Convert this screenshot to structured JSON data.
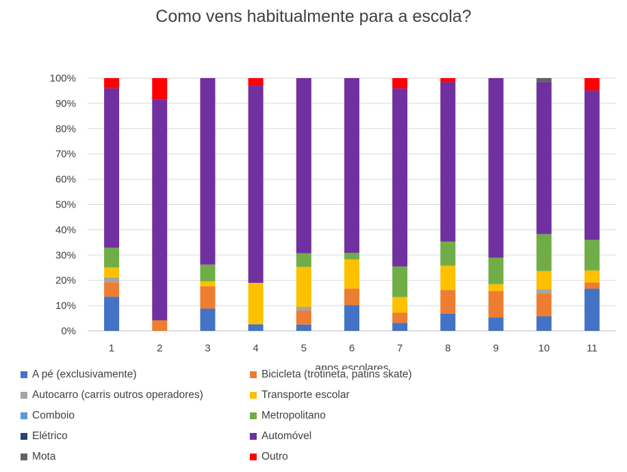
{
  "chart_data": {
    "type": "bar",
    "stacked": "percent",
    "title": "Como vens habitualmente para a escola?",
    "xlabel": "anos escolares",
    "ylabel": "",
    "ylim": [
      0,
      100
    ],
    "yticks": [
      "0%",
      "10%",
      "20%",
      "30%",
      "40%",
      "50%",
      "60%",
      "70%",
      "80%",
      "90%",
      "100%"
    ],
    "categories": [
      "1",
      "2",
      "3",
      "4",
      "5",
      "6",
      "7",
      "8",
      "9",
      "10",
      "11"
    ],
    "legend_position": "bottom",
    "series": [
      {
        "name": "A pé (exclusivamente)",
        "color": "#4472C4",
        "values": [
          13.5,
          0,
          8.8,
          2.6,
          2.5,
          10.2,
          3.2,
          6.8,
          5.3,
          5.8,
          16.7
        ]
      },
      {
        "name": "Bicicleta (trotineta, patins skate)",
        "color": "#ED7D31",
        "values": [
          5.7,
          4.2,
          8.8,
          0,
          5.5,
          6.5,
          4.0,
          9.4,
          10.5,
          9.0,
          2.4
        ]
      },
      {
        "name": "Autocarro (carris outros operadores)",
        "color": "#A5A5A5",
        "values": [
          2.0,
          0,
          0,
          0,
          1.5,
          0,
          0,
          0,
          0,
          1.6,
          0
        ]
      },
      {
        "name": "Transporte escolar",
        "color": "#FFC000",
        "values": [
          3.9,
          0,
          2.0,
          16.4,
          15.8,
          11.6,
          6.2,
          9.6,
          2.7,
          7.3,
          4.8
        ]
      },
      {
        "name": "Comboio",
        "color": "#5B9BD5",
        "values": [
          0,
          0,
          0,
          0,
          0,
          0,
          0,
          0,
          0,
          0,
          0
        ]
      },
      {
        "name": "Metropolitano",
        "color": "#70AD47",
        "values": [
          7.8,
          0,
          6.6,
          0,
          5.4,
          2.6,
          12.1,
          9.5,
          10.5,
          14.6,
          12.1
        ]
      },
      {
        "name": "Elétrico",
        "color": "#264478",
        "values": [
          0,
          0,
          0,
          0,
          0,
          0,
          0,
          0,
          0,
          0,
          0
        ]
      },
      {
        "name": "Automóvel",
        "color": "#7030A0",
        "values": [
          63.1,
          87.3,
          73.8,
          78.0,
          69.3,
          69.1,
          70.4,
          63.1,
          71.0,
          60.1,
          59.1
        ]
      },
      {
        "name": "Mota",
        "color": "#636363",
        "values": [
          0,
          0,
          0,
          0,
          0,
          0,
          0,
          0,
          0,
          1.6,
          0
        ]
      },
      {
        "name": "Outro",
        "color": "#FF0000",
        "values": [
          4.0,
          8.5,
          0,
          3.0,
          0,
          0,
          4.1,
          1.6,
          0,
          0,
          4.9
        ]
      }
    ]
  }
}
